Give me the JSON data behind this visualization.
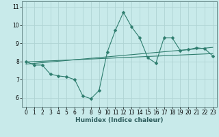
{
  "title": "",
  "xlabel": "Humidex (Indice chaleur)",
  "ylabel": "",
  "background_color": "#c8eaea",
  "grid_color": "#afd4d4",
  "line_color": "#2e7d6e",
  "x_values": [
    0,
    1,
    2,
    3,
    4,
    5,
    6,
    7,
    8,
    9,
    10,
    11,
    12,
    13,
    14,
    15,
    16,
    17,
    18,
    19,
    20,
    21,
    22,
    23
  ],
  "y_main": [
    8.0,
    7.8,
    7.8,
    7.3,
    7.2,
    7.15,
    7.0,
    6.1,
    5.95,
    6.4,
    8.5,
    9.7,
    10.7,
    9.9,
    9.3,
    8.2,
    7.9,
    9.3,
    9.3,
    8.6,
    8.65,
    8.75,
    8.7,
    8.3
  ],
  "y_trend1": [
    7.97,
    7.99,
    8.01,
    8.03,
    8.05,
    8.07,
    8.09,
    8.11,
    8.13,
    8.15,
    8.17,
    8.19,
    8.21,
    8.23,
    8.25,
    8.27,
    8.29,
    8.31,
    8.33,
    8.35,
    8.37,
    8.39,
    8.41,
    8.43
  ],
  "y_trend2": [
    7.85,
    7.89,
    7.93,
    7.97,
    8.01,
    8.05,
    8.09,
    8.13,
    8.17,
    8.21,
    8.25,
    8.29,
    8.33,
    8.37,
    8.41,
    8.45,
    8.49,
    8.53,
    8.57,
    8.61,
    8.65,
    8.69,
    8.73,
    8.77
  ],
  "ylim": [
    5.5,
    11.3
  ],
  "xlim": [
    -0.5,
    23.5
  ],
  "yticks": [
    6,
    7,
    8,
    9,
    10,
    11
  ],
  "xticks": [
    0,
    1,
    2,
    3,
    4,
    5,
    6,
    7,
    8,
    9,
    10,
    11,
    12,
    13,
    14,
    15,
    16,
    17,
    18,
    19,
    20,
    21,
    22,
    23
  ],
  "markersize": 2.5,
  "linewidth": 0.8,
  "tick_fontsize": 5.5,
  "label_fontsize": 6.5
}
